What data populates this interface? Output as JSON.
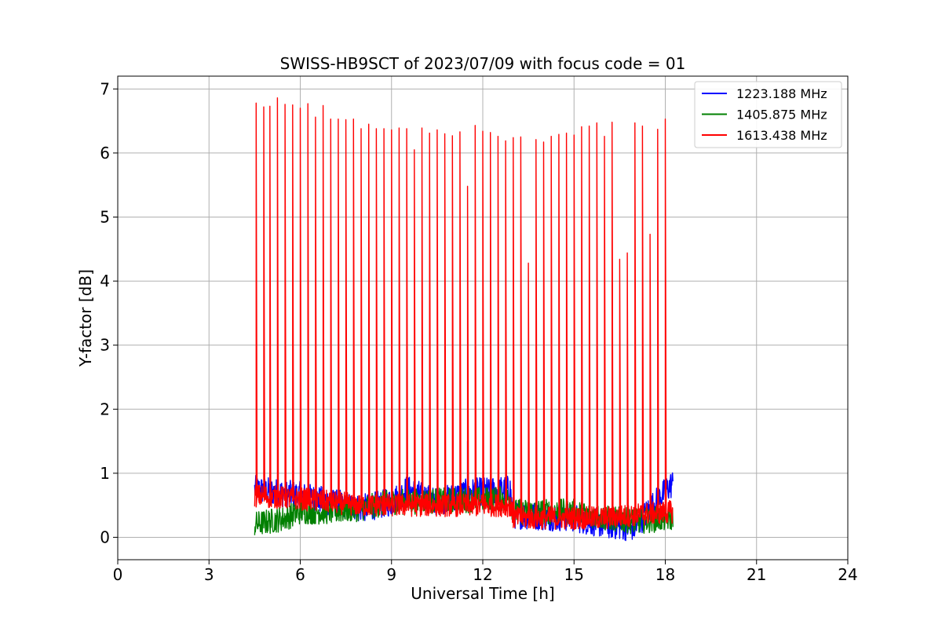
{
  "chart_data": {
    "type": "line",
    "title": "SWISS-HB9SCT of 2023/07/09 with focus code = 01",
    "xlabel": "Universal Time [h]",
    "ylabel": "Y-factor [dB]",
    "xlim": [
      0,
      24
    ],
    "ylim": [
      -0.35,
      7.2
    ],
    "xticks": [
      0,
      3,
      6,
      9,
      12,
      15,
      18,
      21,
      24
    ],
    "yticks": [
      0,
      1,
      2,
      3,
      4,
      5,
      6,
      7
    ],
    "grid": true,
    "legend_position": "top-right",
    "data_span_hours": [
      4.5,
      18.25
    ],
    "series": [
      {
        "name": "1223.188 MHz",
        "color": "#0000ff",
        "baseline": [
          [
            4.5,
            0.75
          ],
          [
            6.0,
            0.65
          ],
          [
            8.0,
            0.45
          ],
          [
            9.0,
            0.55
          ],
          [
            9.5,
            0.75
          ],
          [
            10.5,
            0.55
          ],
          [
            11.5,
            0.7
          ],
          [
            12.9,
            0.75
          ],
          [
            13.0,
            0.35
          ],
          [
            15.0,
            0.3
          ],
          [
            16.0,
            0.2
          ],
          [
            17.0,
            0.15
          ],
          [
            17.5,
            0.45
          ],
          [
            18.25,
            0.85
          ]
        ],
        "noise": 0.22,
        "spikes": [
          [
            11.5,
            1.5
          ]
        ]
      },
      {
        "name": "1405.875 MHz",
        "color": "#008000",
        "baseline": [
          [
            4.5,
            0.2
          ],
          [
            5.5,
            0.3
          ],
          [
            6.0,
            0.4
          ],
          [
            7.0,
            0.4
          ],
          [
            8.0,
            0.45
          ],
          [
            9.0,
            0.55
          ],
          [
            12.9,
            0.6
          ],
          [
            13.0,
            0.4
          ],
          [
            15.0,
            0.4
          ],
          [
            16.0,
            0.3
          ],
          [
            17.0,
            0.25
          ],
          [
            18.25,
            0.3
          ]
        ],
        "noise": 0.2,
        "spikes": []
      },
      {
        "name": "1613.438 MHz",
        "color": "#ff0000",
        "baseline": [
          [
            4.5,
            0.65
          ],
          [
            6.0,
            0.6
          ],
          [
            7.0,
            0.55
          ],
          [
            8.0,
            0.5
          ],
          [
            10.0,
            0.5
          ],
          [
            12.9,
            0.5
          ],
          [
            13.0,
            0.3
          ],
          [
            15.0,
            0.3
          ],
          [
            16.0,
            0.3
          ],
          [
            17.0,
            0.35
          ],
          [
            18.25,
            0.4
          ]
        ],
        "noise": 0.18,
        "spikes": [
          [
            4.55,
            6.78
          ],
          [
            4.8,
            6.72
          ],
          [
            5.0,
            6.73
          ],
          [
            5.25,
            6.86
          ],
          [
            5.5,
            6.76
          ],
          [
            5.75,
            6.75
          ],
          [
            6.0,
            6.7
          ],
          [
            6.25,
            6.77
          ],
          [
            6.5,
            6.56
          ],
          [
            6.75,
            6.74
          ],
          [
            7.0,
            6.53
          ],
          [
            7.25,
            6.53
          ],
          [
            7.5,
            6.52
          ],
          [
            7.75,
            6.53
          ],
          [
            8.0,
            6.38
          ],
          [
            8.25,
            6.45
          ],
          [
            8.5,
            6.38
          ],
          [
            8.75,
            6.38
          ],
          [
            9.0,
            6.36
          ],
          [
            9.25,
            6.39
          ],
          [
            9.5,
            6.38
          ],
          [
            9.75,
            6.05
          ],
          [
            10.0,
            6.39
          ],
          [
            10.25,
            6.31
          ],
          [
            10.5,
            6.36
          ],
          [
            10.75,
            6.3
          ],
          [
            11.0,
            6.27
          ],
          [
            11.25,
            6.33
          ],
          [
            11.5,
            5.48
          ],
          [
            11.75,
            6.43
          ],
          [
            12.0,
            6.34
          ],
          [
            12.25,
            6.32
          ],
          [
            12.5,
            6.26
          ],
          [
            12.75,
            6.19
          ],
          [
            13.0,
            6.24
          ],
          [
            13.25,
            6.25
          ],
          [
            13.5,
            4.28
          ],
          [
            13.75,
            6.21
          ],
          [
            14.0,
            6.17
          ],
          [
            14.25,
            6.26
          ],
          [
            14.5,
            6.29
          ],
          [
            14.75,
            6.31
          ],
          [
            15.0,
            6.28
          ],
          [
            15.25,
            6.41
          ],
          [
            15.5,
            6.42
          ],
          [
            15.75,
            6.47
          ],
          [
            16.0,
            6.26
          ],
          [
            16.25,
            6.48
          ],
          [
            16.5,
            4.34
          ],
          [
            16.75,
            4.44
          ],
          [
            17.0,
            6.47
          ],
          [
            17.25,
            6.42
          ],
          [
            17.5,
            4.73
          ],
          [
            17.75,
            6.37
          ],
          [
            18.0,
            6.53
          ]
        ]
      }
    ]
  }
}
